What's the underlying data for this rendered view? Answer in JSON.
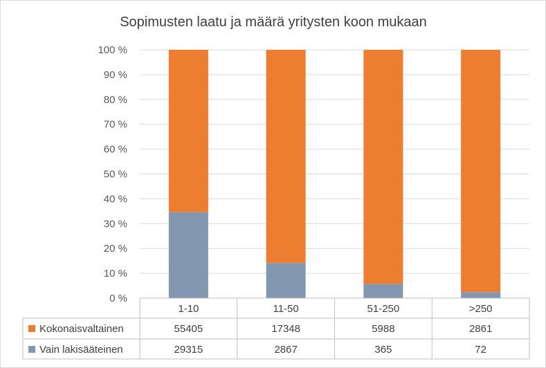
{
  "chart_data": {
    "type": "bar",
    "stacked": "percent",
    "title": "Sopimusten laatu ja määrä yritysten koon mukaan",
    "categories": [
      "1-10",
      "11-50",
      "51-250",
      ">250"
    ],
    "series": [
      {
        "name": "Vain lakisääteinen",
        "values": [
          29315,
          2867,
          365,
          72
        ],
        "color": "#8497b0"
      },
      {
        "name": "Kokonaisvaltainen",
        "values": [
          55405,
          17348,
          5988,
          2861
        ],
        "color": "#ed7d31"
      }
    ],
    "table_rows": [
      {
        "name": "Kokonaisvaltainen",
        "values": [
          "55405",
          "17348",
          "5988",
          "2861"
        ],
        "color": "#ed7d31"
      },
      {
        "name": "Vain lakisääteinen",
        "values": [
          "29315",
          "2867",
          "365",
          "72"
        ],
        "color": "#8497b0"
      }
    ],
    "yticks": [
      "0 %",
      "10 %",
      "20 %",
      "30 %",
      "40 %",
      "50 %",
      "60 %",
      "70 %",
      "80 %",
      "90 %",
      "100 %"
    ],
    "ylim": [
      0,
      100
    ],
    "grid": true,
    "legend": "data-table-below"
  }
}
